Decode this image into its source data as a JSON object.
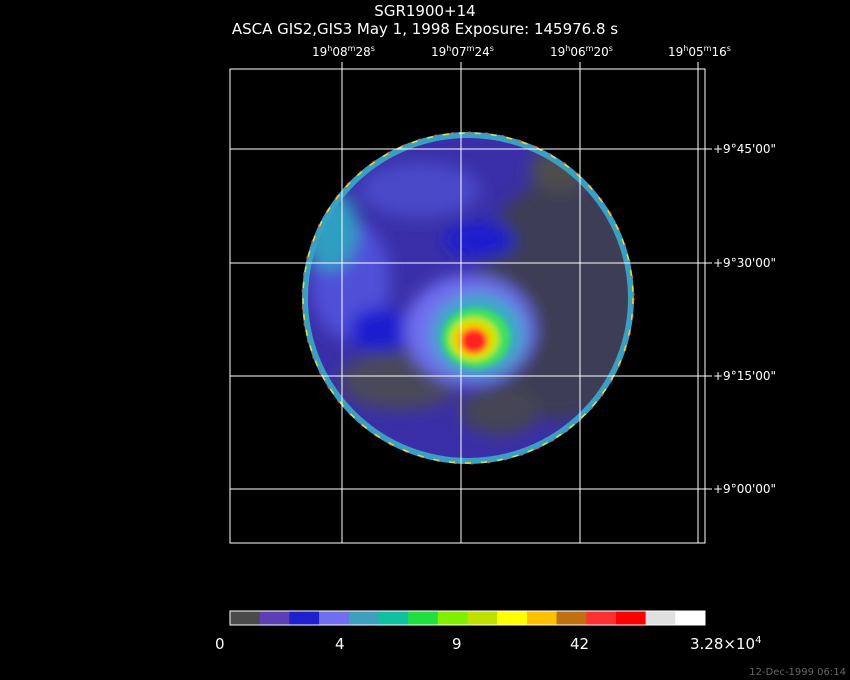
{
  "title": "SGR1900+14",
  "subtitle": "ASCA GIS2,GIS3 May 1, 1998 Exposure: 145976.8 s",
  "ra_ticks": [
    {
      "h": "19",
      "m": "08",
      "s": "28"
    },
    {
      "h": "19",
      "m": "07",
      "s": "24"
    },
    {
      "h": "19",
      "m": "06",
      "s": "20"
    },
    {
      "h": "19",
      "m": "05",
      "s": "16"
    }
  ],
  "dec_ticks": [
    "+9°45'00\"",
    "+9°30'00\"",
    "+9°15'00\"",
    "+9°00'00\""
  ],
  "colorbar": {
    "labels": [
      "0",
      "4",
      "9",
      "42"
    ],
    "max_mantissa": "3.28×10",
    "max_exp": "4",
    "colors": [
      "#4a4a4a",
      "#5a3fb5",
      "#1f1fd0",
      "#6f6ff0",
      "#3f9fbf",
      "#10c0a0",
      "#20e040",
      "#80f000",
      "#c0e000",
      "#ffff00",
      "#ffc000",
      "#c07010",
      "#ff3030",
      "#ff0000",
      "#e0e0e0",
      "#ffffff"
    ]
  },
  "timestamp": "12-Dec-1999 06:14",
  "chart_data": {
    "type": "heatmap",
    "title": "SGR1900+14",
    "subtitle": "ASCA GIS2,GIS3 May 1, 1998 Exposure: 145976.8 s",
    "x_ticks": [
      "19h08m28s",
      "19h07m24s",
      "19h06m20s",
      "19h05m16s"
    ],
    "y_ticks": [
      "+9°45'00\"",
      "+9°30'00\"",
      "+9°15'00\"",
      "+9°00'00\""
    ],
    "colorbar_ticks": [
      "0",
      "4",
      "9",
      "42",
      "3.28×10^4"
    ],
    "grid": true
  }
}
